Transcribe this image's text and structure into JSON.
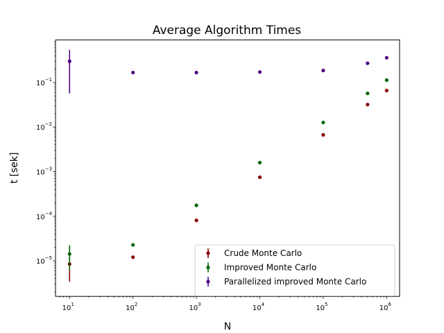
{
  "chart_data": {
    "type": "scatter",
    "title": "Average Algorithm Times",
    "xlabel": "N",
    "ylabel": "t [sek]",
    "xscale": "log",
    "yscale": "log",
    "xlim": [
      6,
      1600000
    ],
    "ylim": [
      1.6e-06,
      0.9
    ],
    "grid": false,
    "legend_position": "lower-right",
    "x_ticks": [
      {
        "value": 10,
        "base": "10",
        "exp": "1"
      },
      {
        "value": 100,
        "base": "10",
        "exp": "2"
      },
      {
        "value": 1000,
        "base": "10",
        "exp": "3"
      },
      {
        "value": 10000,
        "base": "10",
        "exp": "4"
      },
      {
        "value": 100000,
        "base": "10",
        "exp": "5"
      },
      {
        "value": 1000000,
        "base": "10",
        "exp": "6"
      }
    ],
    "y_ticks": [
      {
        "value": 1e-05,
        "base": "10",
        "exp": "−5"
      },
      {
        "value": 0.0001,
        "base": "10",
        "exp": "−4"
      },
      {
        "value": 0.001,
        "base": "10",
        "exp": "−3"
      },
      {
        "value": 0.01,
        "base": "10",
        "exp": "−2"
      },
      {
        "value": 0.1,
        "base": "10",
        "exp": "−1"
      }
    ],
    "series": [
      {
        "name": "Crude Monte Carlo",
        "color": "#8b0000",
        "points": [
          {
            "x": 10,
            "y": 8.5e-06,
            "ylow": 3.4e-06,
            "yhigh": 1.34e-05
          },
          {
            "x": 100,
            "y": 1.21e-05
          },
          {
            "x": 1000,
            "y": 8.1e-05
          },
          {
            "x": 10000,
            "y": 0.00075
          },
          {
            "x": 100000,
            "y": 0.0067
          },
          {
            "x": 500000,
            "y": 0.032
          },
          {
            "x": 1000000,
            "y": 0.066
          }
        ]
      },
      {
        "name": "Improved Monte Carlo",
        "color": "#006400",
        "points": [
          {
            "x": 10,
            "y": 1.43e-05,
            "ylow": 6.2e-06,
            "yhigh": 2.24e-05
          },
          {
            "x": 100,
            "y": 2.28e-05
          },
          {
            "x": 1000,
            "y": 0.000176
          },
          {
            "x": 10000,
            "y": 0.0016
          },
          {
            "x": 100000,
            "y": 0.0127
          },
          {
            "x": 500000,
            "y": 0.057
          },
          {
            "x": 1000000,
            "y": 0.113
          }
        ]
      },
      {
        "name": "Parallelized improved Monte Carlo",
        "color": "#4b0082",
        "points": [
          {
            "x": 10,
            "y": 0.3,
            "ylow": 0.057,
            "yhigh": 0.54
          },
          {
            "x": 100,
            "y": 0.167
          },
          {
            "x": 1000,
            "y": 0.167
          },
          {
            "x": 10000,
            "y": 0.172
          },
          {
            "x": 100000,
            "y": 0.186
          },
          {
            "x": 500000,
            "y": 0.27
          },
          {
            "x": 1000000,
            "y": 0.36
          }
        ]
      }
    ]
  }
}
